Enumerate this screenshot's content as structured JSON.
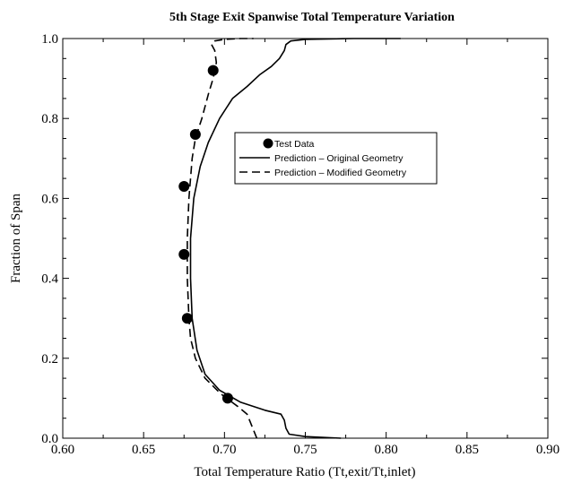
{
  "chart_data": {
    "type": "line",
    "title": "5th Stage Exit Spanwise Total Temperature Variation",
    "xlabel": "Total Temperature Ratio (Tt,exit/Tt,inlet)",
    "ylabel": "Fraction of Span",
    "xlim": [
      0.6,
      0.9
    ],
    "ylim": [
      0.0,
      1.0
    ],
    "xticks": [
      "0.60",
      "0.65",
      "0.70",
      "0.75",
      "0.80",
      "0.85",
      "0.90"
    ],
    "yticks": [
      "0.0",
      "0.2",
      "0.4",
      "0.6",
      "0.8",
      "1.0"
    ],
    "grid": false,
    "legend_position": "center-right",
    "series": [
      {
        "name": "Test Data",
        "style": "markers",
        "x": [
          0.702,
          0.677,
          0.675,
          0.675,
          0.682,
          0.693
        ],
        "y": [
          0.1,
          0.3,
          0.46,
          0.63,
          0.76,
          0.92
        ]
      },
      {
        "name": "Prediction – Original Geometry",
        "style": "solid",
        "x": [
          0.772,
          0.75,
          0.74,
          0.738,
          0.737,
          0.735,
          0.725,
          0.71,
          0.697,
          0.688,
          0.683,
          0.68,
          0.679,
          0.679,
          0.681,
          0.685,
          0.69,
          0.697,
          0.705,
          0.714,
          0.722,
          0.729,
          0.734,
          0.737,
          0.738,
          0.741,
          0.75,
          0.78,
          0.809
        ],
        "y": [
          0.0,
          0.004,
          0.01,
          0.025,
          0.045,
          0.06,
          0.07,
          0.09,
          0.12,
          0.16,
          0.22,
          0.3,
          0.4,
          0.5,
          0.6,
          0.68,
          0.74,
          0.8,
          0.85,
          0.88,
          0.91,
          0.93,
          0.95,
          0.97,
          0.985,
          0.994,
          0.998,
          1.0,
          1.0
        ]
      },
      {
        "name": "Prediction – Modified Geometry",
        "style": "dashed",
        "x": [
          0.72,
          0.718,
          0.716,
          0.714,
          0.708,
          0.698,
          0.688,
          0.682,
          0.679,
          0.678,
          0.677,
          0.677,
          0.678,
          0.68,
          0.682,
          0.686,
          0.69,
          0.693,
          0.695,
          0.694,
          0.692,
          0.694,
          0.7,
          0.71,
          0.718
        ],
        "y": [
          0.0,
          0.02,
          0.04,
          0.06,
          0.08,
          0.11,
          0.15,
          0.2,
          0.25,
          0.3,
          0.4,
          0.5,
          0.6,
          0.7,
          0.75,
          0.8,
          0.86,
          0.9,
          0.94,
          0.97,
          0.985,
          0.994,
          0.998,
          1.0,
          1.0
        ]
      }
    ]
  }
}
